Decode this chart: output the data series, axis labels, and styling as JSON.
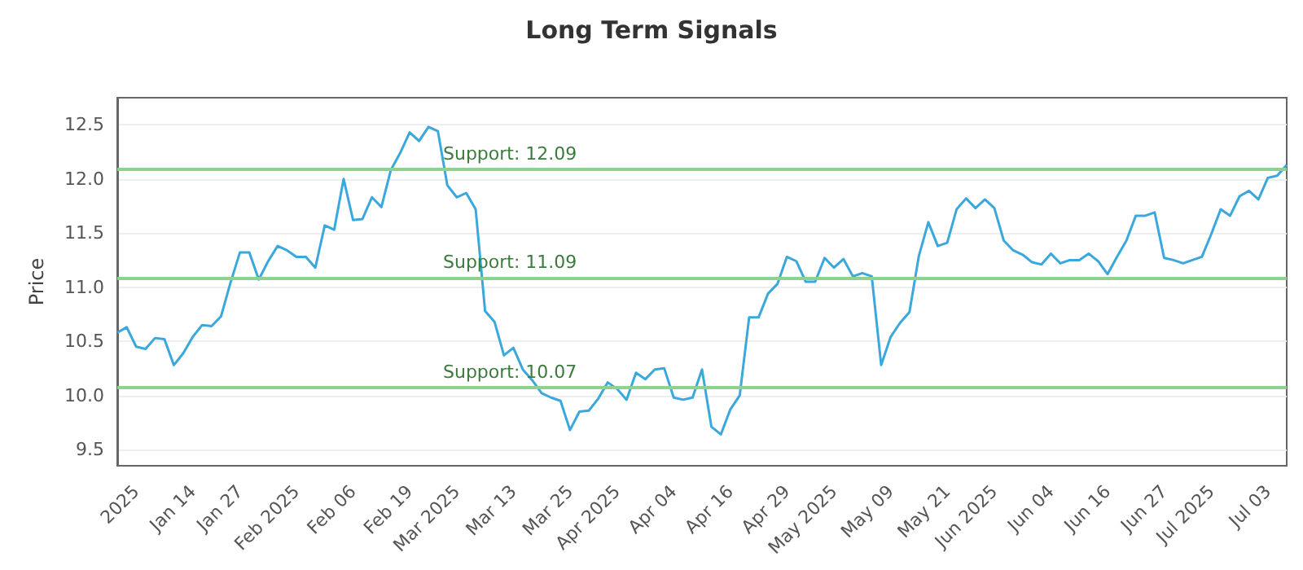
{
  "chart_data": {
    "type": "line",
    "title": "Long Term Signals",
    "ylabel": "Price",
    "categories": [
      null,
      null,
      "2025",
      null,
      null,
      null,
      null,
      null,
      "Jan 14",
      null,
      null,
      null,
      null,
      "Jan 27",
      null,
      null,
      null,
      null,
      null,
      "Feb 2025",
      null,
      null,
      null,
      null,
      null,
      "Feb 06",
      null,
      null,
      null,
      null,
      null,
      "Feb 19",
      null,
      null,
      null,
      null,
      "Mar 2025",
      null,
      null,
      null,
      null,
      null,
      "Mar 13",
      null,
      null,
      null,
      null,
      null,
      "Mar 25",
      null,
      null,
      null,
      null,
      "Apr 2025",
      null,
      null,
      null,
      null,
      null,
      "Apr 04",
      null,
      null,
      null,
      null,
      null,
      "Apr 16",
      null,
      null,
      null,
      null,
      null,
      "Apr 29",
      null,
      null,
      null,
      null,
      "May 2025",
      null,
      null,
      null,
      null,
      null,
      "May 09",
      null,
      null,
      null,
      null,
      null,
      "May 21",
      null,
      null,
      null,
      null,
      "Jun 2025",
      null,
      null,
      null,
      null,
      null,
      "Jun 04",
      null,
      null,
      null,
      null,
      null,
      "Jun 16",
      null,
      null,
      null,
      null,
      null,
      "Jun 27",
      null,
      null,
      null,
      null,
      "Jul 2025",
      null,
      null,
      null,
      null,
      null,
      "Jul 03",
      null,
      null
    ],
    "series": [
      {
        "color": "#3aa8dc",
        "values": [
          10.58,
          10.63,
          10.45,
          10.43,
          10.53,
          10.52,
          10.28,
          10.39,
          10.54,
          10.65,
          10.64,
          10.73,
          11.04,
          11.32,
          11.32,
          11.07,
          11.24,
          11.38,
          11.34,
          11.28,
          11.28,
          11.18,
          11.57,
          11.53,
          12.0,
          11.62,
          11.63,
          11.83,
          11.74,
          12.08,
          12.24,
          12.43,
          12.35,
          12.48,
          12.44,
          11.94,
          11.83,
          11.87,
          11.72,
          10.78,
          10.68,
          10.37,
          10.44,
          10.24,
          10.14,
          10.02,
          9.98,
          9.95,
          9.68,
          9.85,
          9.86,
          9.97,
          10.12,
          10.06,
          9.96,
          10.21,
          10.15,
          10.24,
          10.25,
          9.98,
          9.96,
          9.98,
          10.24,
          9.71,
          9.64,
          9.87,
          10.0,
          10.72,
          10.72,
          10.94,
          11.03,
          11.28,
          11.24,
          11.05,
          11.05,
          11.27,
          11.18,
          11.26,
          11.1,
          11.13,
          11.1,
          10.28,
          10.54,
          10.67,
          10.77,
          11.29,
          11.6,
          11.38,
          11.41,
          11.72,
          11.82,
          11.73,
          11.81,
          11.73,
          11.43,
          11.34,
          11.3,
          11.23,
          11.21,
          11.31,
          11.22,
          11.25,
          11.25,
          11.31,
          11.24,
          11.12,
          11.28,
          11.43,
          11.66,
          11.66,
          11.69,
          11.27,
          11.25,
          11.22,
          11.25,
          11.28,
          11.49,
          11.72,
          11.66,
          11.84,
          11.89,
          11.81,
          12.01,
          12.03,
          12.13
        ]
      }
    ],
    "ylim": [
      9.35,
      12.75
    ],
    "yticks": [
      9.5,
      {
        "value": 10,
        "label": "10.0"
      },
      10.5,
      {
        "value": 11,
        "label": "11.0"
      },
      11.5,
      {
        "value": 12,
        "label": "12.0"
      },
      12.5
    ],
    "ref_lines": [
      {
        "axis": "y",
        "value": 12.09,
        "label": "Support: 12.09",
        "color": "#8fd18f"
      },
      {
        "axis": "y",
        "value": 11.09,
        "label": "Support: 11.09",
        "color": "#8fd18f"
      },
      {
        "axis": "y",
        "value": 10.07,
        "label": "Support: 10.07",
        "color": "#8fd18f"
      }
    ],
    "grid": "y",
    "marker": "none",
    "line_style": "solid"
  }
}
